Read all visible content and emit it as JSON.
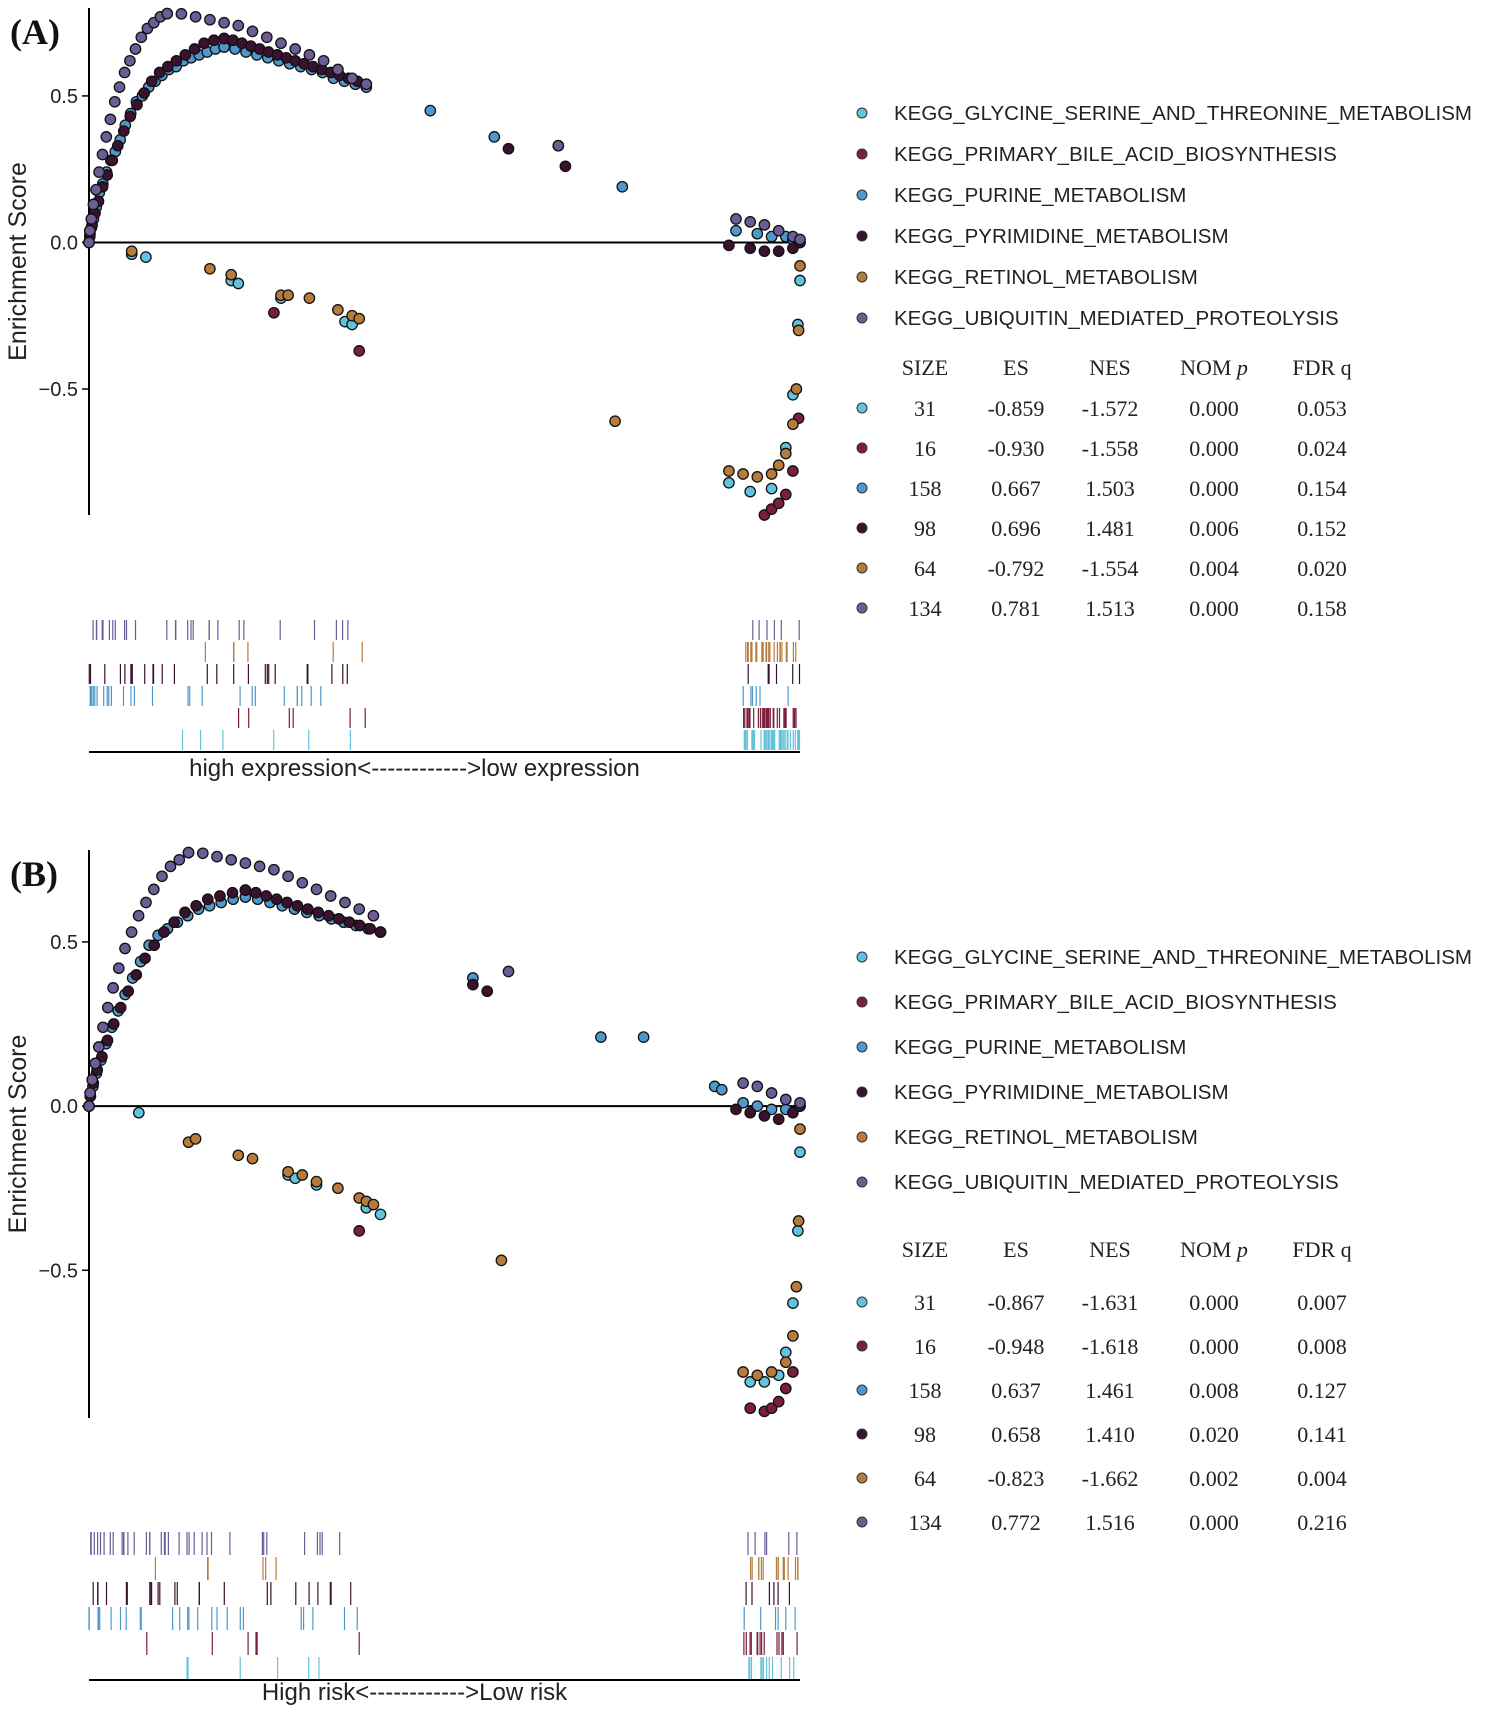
{
  "chart_data": [
    {
      "type": "scatter",
      "panel_label": "(A)",
      "ylabel": "Enrichment Score",
      "xlabel": "high expression<------------>low expression",
      "ylim": [
        -0.93,
        0.8
      ],
      "yticks": [
        {
          "v": 0.5,
          "label": "0.5"
        },
        {
          "v": 0.0,
          "label": "0.0"
        },
        {
          "v": -0.5,
          "label": "−0.5"
        }
      ],
      "grid": false,
      "legend_position": "right",
      "table": {
        "headers": [
          "SIZE",
          "ES",
          "NES",
          "NOM p",
          "FDR q"
        ],
        "rows": [
          [
            "31",
            "-0.859",
            "-1.572",
            "0.000",
            "0.053"
          ],
          [
            "16",
            "-0.930",
            "-1.558",
            "0.000",
            "0.024"
          ],
          [
            "158",
            "0.667",
            "1.503",
            "0.000",
            "0.154"
          ],
          [
            "98",
            "0.696",
            "1.481",
            "0.006",
            "0.152"
          ],
          [
            "64",
            "-0.792",
            "-1.554",
            "0.004",
            "0.020"
          ],
          [
            "134",
            "0.781",
            "1.513",
            "0.000",
            "0.158"
          ]
        ]
      },
      "series": [
        {
          "name": "KEGG_GLYCINE_SERINE_AND_THREONINE_METABOLISM",
          "color": "#63c3dd",
          "es": -0.859,
          "head": [
            [
              0.06,
              -0.04
            ],
            [
              0.08,
              -0.05
            ],
            [
              0.2,
              -0.13
            ],
            [
              0.21,
              -0.14
            ],
            [
              0.27,
              -0.19
            ],
            [
              0.36,
              -0.27
            ],
            [
              0.37,
              -0.28
            ]
          ],
          "tail": [
            [
              0.9,
              -0.82
            ],
            [
              0.93,
              -0.85
            ],
            [
              0.96,
              -0.84
            ],
            [
              0.98,
              -0.7
            ],
            [
              0.99,
              -0.52
            ],
            [
              0.997,
              -0.28
            ],
            [
              1.0,
              -0.13
            ]
          ]
        },
        {
          "name": "KEGG_PRIMARY_BILE_ACID_BIOSYNTHESIS",
          "color": "#7a1f3d",
          "es": -0.93,
          "head": [
            [
              0.26,
              -0.24
            ],
            [
              0.38,
              -0.37
            ]
          ],
          "tail": [
            [
              0.95,
              -0.93
            ],
            [
              0.96,
              -0.91
            ],
            [
              0.97,
              -0.89
            ],
            [
              0.98,
              -0.86
            ],
            [
              0.99,
              -0.78
            ],
            [
              0.998,
              -0.6
            ]
          ]
        },
        {
          "name": "KEGG_PURINE_METABOLISM",
          "color": "#4f98cb",
          "es": 0.667,
          "rise": [
            0.0,
            0.02,
            0.05,
            0.08,
            0.12,
            0.17,
            0.2,
            0.24,
            0.28,
            0.31,
            0.35,
            0.4,
            0.44,
            0.48,
            0.5,
            0.53,
            0.55,
            0.57,
            0.59,
            0.6,
            0.62,
            0.63,
            0.64,
            0.65,
            0.66,
            0.667
          ],
          "fall": [
            0.667,
            0.66,
            0.65,
            0.64,
            0.63,
            0.62,
            0.61,
            0.6,
            0.59,
            0.58,
            0.56,
            0.55,
            0.54,
            0.53
          ],
          "peak_x": 0.19,
          "fall_end_x": 0.39,
          "points": [
            [
              0.48,
              0.45
            ],
            [
              0.57,
              0.36
            ],
            [
              0.66,
              0.33
            ],
            [
              0.75,
              0.19
            ]
          ],
          "tail": [
            [
              0.91,
              0.04
            ],
            [
              0.94,
              0.03
            ],
            [
              0.96,
              0.02
            ],
            [
              0.98,
              0.02
            ],
            [
              0.99,
              0.01
            ],
            [
              1.0,
              0.0
            ]
          ]
        },
        {
          "name": "KEGG_PYRIMIDINE_METABOLISM",
          "color": "#3a1230",
          "es": 0.696,
          "rise": [
            0.0,
            0.03,
            0.06,
            0.1,
            0.14,
            0.19,
            0.23,
            0.28,
            0.33,
            0.38,
            0.43,
            0.47,
            0.51,
            0.55,
            0.58,
            0.6,
            0.62,
            0.64,
            0.66,
            0.68,
            0.69,
            0.696
          ],
          "fall": [
            0.696,
            0.69,
            0.68,
            0.67,
            0.66,
            0.65,
            0.64,
            0.63,
            0.62,
            0.61,
            0.6,
            0.59,
            0.58,
            0.57,
            0.56,
            0.55,
            0.54
          ],
          "peak_x": 0.19,
          "fall_end_x": 0.39,
          "points": [
            [
              0.59,
              0.32
            ],
            [
              0.67,
              0.26
            ]
          ],
          "tail": [
            [
              0.9,
              -0.01
            ],
            [
              0.93,
              -0.02
            ],
            [
              0.95,
              -0.03
            ],
            [
              0.97,
              -0.03
            ],
            [
              0.99,
              -0.02
            ],
            [
              1.0,
              0.0
            ]
          ]
        },
        {
          "name": "KEGG_RETINOL_METABOLISM",
          "color": "#b77b3c",
          "es": -0.792,
          "head": [
            [
              0.06,
              -0.03
            ],
            [
              0.17,
              -0.09
            ],
            [
              0.2,
              -0.11
            ],
            [
              0.27,
              -0.18
            ],
            [
              0.28,
              -0.18
            ],
            [
              0.31,
              -0.19
            ],
            [
              0.35,
              -0.23
            ],
            [
              0.37,
              -0.25
            ],
            [
              0.38,
              -0.26
            ],
            [
              0.74,
              -0.61
            ]
          ],
          "tail": [
            [
              0.9,
              -0.78
            ],
            [
              0.92,
              -0.79
            ],
            [
              0.94,
              -0.8
            ],
            [
              0.96,
              -0.79
            ],
            [
              0.97,
              -0.76
            ],
            [
              0.98,
              -0.72
            ],
            [
              0.99,
              -0.62
            ],
            [
              0.995,
              -0.5
            ],
            [
              0.998,
              -0.3
            ],
            [
              1.0,
              -0.08
            ]
          ]
        },
        {
          "name": "KEGG_UBIQUITIN_MEDIATED_PROTEOLYSIS",
          "color": "#6b5d95",
          "es": 0.781,
          "rise": [
            0.0,
            0.04,
            0.08,
            0.13,
            0.18,
            0.24,
            0.3,
            0.36,
            0.42,
            0.48,
            0.53,
            0.58,
            0.62,
            0.66,
            0.7,
            0.73,
            0.75,
            0.77,
            0.781
          ],
          "fall": [
            0.781,
            0.78,
            0.77,
            0.76,
            0.75,
            0.74,
            0.72,
            0.7,
            0.68,
            0.66,
            0.64,
            0.62,
            0.59,
            0.56,
            0.54
          ],
          "peak_x": 0.11,
          "fall_end_x": 0.39,
          "points": [
            [
              0.66,
              0.33
            ]
          ],
          "tail": [
            [
              0.91,
              0.08
            ],
            [
              0.93,
              0.07
            ],
            [
              0.95,
              0.06
            ],
            [
              0.97,
              0.04
            ],
            [
              0.99,
              0.02
            ],
            [
              1.0,
              0.01
            ]
          ]
        }
      ]
    },
    {
      "type": "scatter",
      "panel_label": "(B)",
      "ylabel": "Enrichment Score",
      "xlabel": "High risk<------------>Low risk",
      "ylim": [
        -0.95,
        0.78
      ],
      "yticks": [
        {
          "v": 0.5,
          "label": "0.5"
        },
        {
          "v": 0.0,
          "label": "0.0"
        },
        {
          "v": -0.5,
          "label": "−0.5"
        }
      ],
      "grid": false,
      "legend_position": "right",
      "table": {
        "headers": [
          "SIZE",
          "ES",
          "NES",
          "NOM p",
          "FDR q"
        ],
        "rows": [
          [
            "31",
            "-0.867",
            "-1.631",
            "0.000",
            "0.007"
          ],
          [
            "16",
            "-0.948",
            "-1.618",
            "0.000",
            "0.008"
          ],
          [
            "158",
            "0.637",
            "1.461",
            "0.008",
            "0.127"
          ],
          [
            "98",
            "0.658",
            "1.410",
            "0.020",
            "0.141"
          ],
          [
            "64",
            "-0.823",
            "-1.662",
            "0.002",
            "0.004"
          ],
          [
            "134",
            "0.772",
            "1.516",
            "0.000",
            "0.216"
          ]
        ]
      },
      "series": [
        {
          "name": "KEGG_GLYCINE_SERINE_AND_THREONINE_METABOLISM",
          "color": "#63c3dd",
          "es": -0.867,
          "head": [
            [
              0.07,
              -0.02
            ],
            [
              0.28,
              -0.21
            ],
            [
              0.29,
              -0.22
            ],
            [
              0.32,
              -0.24
            ],
            [
              0.39,
              -0.31
            ],
            [
              0.41,
              -0.33
            ]
          ],
          "tail": [
            [
              0.93,
              -0.84
            ],
            [
              0.95,
              -0.84
            ],
            [
              0.97,
              -0.82
            ],
            [
              0.98,
              -0.75
            ],
            [
              0.99,
              -0.6
            ],
            [
              0.997,
              -0.38
            ],
            [
              1.0,
              -0.14
            ]
          ]
        },
        {
          "name": "KEGG_PRIMARY_BILE_ACID_BIOSYNTHESIS",
          "color": "#7a1f3d",
          "es": -0.948,
          "head": [
            [
              0.38,
              -0.38
            ]
          ],
          "tail": [
            [
              0.93,
              -0.92
            ],
            [
              0.95,
              -0.93
            ],
            [
              0.96,
              -0.92
            ],
            [
              0.97,
              -0.9
            ],
            [
              0.98,
              -0.86
            ],
            [
              0.99,
              -0.81
            ]
          ]
        },
        {
          "name": "KEGG_PURINE_METABOLISM",
          "color": "#4f98cb",
          "es": 0.637,
          "rise": [
            0.0,
            0.03,
            0.06,
            0.1,
            0.14,
            0.19,
            0.24,
            0.29,
            0.34,
            0.39,
            0.44,
            0.49,
            0.52,
            0.54,
            0.56,
            0.58,
            0.6,
            0.61,
            0.62,
            0.63,
            0.637
          ],
          "fall": [
            0.637,
            0.63,
            0.62,
            0.61,
            0.6,
            0.59,
            0.58,
            0.57,
            0.56,
            0.55,
            0.54,
            0.53
          ],
          "peak_x": 0.22,
          "fall_end_x": 0.41,
          "points": [
            [
              0.54,
              0.39
            ],
            [
              0.72,
              0.21
            ],
            [
              0.78,
              0.21
            ],
            [
              0.88,
              0.06
            ],
            [
              0.89,
              0.05
            ]
          ],
          "tail": [
            [
              0.92,
              0.01
            ],
            [
              0.94,
              0.0
            ],
            [
              0.96,
              -0.01
            ],
            [
              0.98,
              -0.01
            ],
            [
              1.0,
              0.0
            ]
          ]
        },
        {
          "name": "KEGG_PYRIMIDINE_METABOLISM",
          "color": "#3a1230",
          "es": 0.658,
          "rise": [
            0.0,
            0.03,
            0.07,
            0.11,
            0.15,
            0.2,
            0.25,
            0.3,
            0.35,
            0.4,
            0.45,
            0.49,
            0.53,
            0.56,
            0.59,
            0.61,
            0.63,
            0.64,
            0.65,
            0.658
          ],
          "fall": [
            0.658,
            0.65,
            0.64,
            0.63,
            0.62,
            0.61,
            0.6,
            0.59,
            0.58,
            0.57,
            0.56,
            0.55,
            0.54,
            0.53
          ],
          "peak_x": 0.22,
          "fall_end_x": 0.41,
          "points": [
            [
              0.54,
              0.37
            ],
            [
              0.56,
              0.35
            ]
          ],
          "tail": [
            [
              0.91,
              -0.01
            ],
            [
              0.93,
              -0.02
            ],
            [
              0.95,
              -0.03
            ],
            [
              0.97,
              -0.04
            ],
            [
              0.99,
              -0.02
            ],
            [
              1.0,
              0.0
            ]
          ]
        },
        {
          "name": "KEGG_RETINOL_METABOLISM",
          "color": "#b77b3c",
          "es": -0.823,
          "head": [
            [
              0.14,
              -0.11
            ],
            [
              0.15,
              -0.1
            ],
            [
              0.21,
              -0.15
            ],
            [
              0.23,
              -0.16
            ],
            [
              0.28,
              -0.2
            ],
            [
              0.3,
              -0.21
            ],
            [
              0.32,
              -0.23
            ],
            [
              0.35,
              -0.25
            ],
            [
              0.38,
              -0.28
            ],
            [
              0.39,
              -0.29
            ],
            [
              0.4,
              -0.3
            ],
            [
              0.58,
              -0.47
            ]
          ],
          "tail": [
            [
              0.92,
              -0.81
            ],
            [
              0.94,
              -0.82
            ],
            [
              0.96,
              -0.81
            ],
            [
              0.98,
              -0.78
            ],
            [
              0.99,
              -0.7
            ],
            [
              0.995,
              -0.55
            ],
            [
              0.998,
              -0.35
            ],
            [
              1.0,
              -0.07
            ]
          ]
        },
        {
          "name": "KEGG_UBIQUITIN_MEDIATED_PROTEOLYSIS",
          "color": "#6b5d95",
          "es": 0.772,
          "rise": [
            0.0,
            0.04,
            0.08,
            0.13,
            0.18,
            0.24,
            0.3,
            0.36,
            0.42,
            0.48,
            0.53,
            0.58,
            0.62,
            0.66,
            0.7,
            0.73,
            0.75,
            0.772
          ],
          "fall": [
            0.772,
            0.77,
            0.76,
            0.75,
            0.74,
            0.73,
            0.72,
            0.7,
            0.68,
            0.66,
            0.64,
            0.62,
            0.6,
            0.58
          ],
          "peak_x": 0.14,
          "fall_end_x": 0.4,
          "points": [
            [
              0.59,
              0.41
            ]
          ],
          "tail": [
            [
              0.92,
              0.07
            ],
            [
              0.94,
              0.06
            ],
            [
              0.96,
              0.04
            ],
            [
              0.98,
              0.02
            ],
            [
              1.0,
              0.01
            ]
          ]
        }
      ]
    }
  ]
}
